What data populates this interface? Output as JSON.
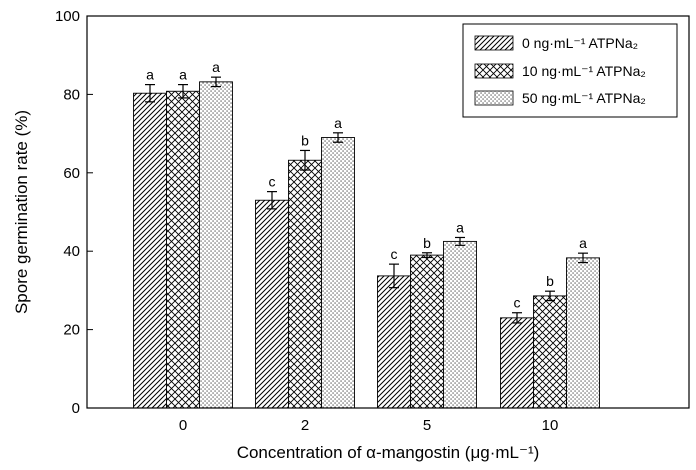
{
  "chart_data": {
    "type": "bar",
    "title": "",
    "xlabel": "Concentration of α-mangostin (μg·mL⁻¹)",
    "ylabel": "Spore germination rate (%)",
    "ylim": [
      0,
      100
    ],
    "yticks": [
      0,
      20,
      40,
      60,
      80,
      100
    ],
    "categories": [
      "0",
      "2",
      "5",
      "10"
    ],
    "legend_position": "top-right",
    "series": [
      {
        "name": "0 ng·mL⁻¹ ATPNa₂",
        "pattern": "diagonal-hatch",
        "values": [
          80.3,
          53.0,
          33.7,
          23.0
        ],
        "errors": [
          2.2,
          2.2,
          3.0,
          1.3
        ],
        "letters": [
          "a",
          "c",
          "c",
          "c"
        ]
      },
      {
        "name": "10 ng·mL⁻¹ ATPNa₂",
        "pattern": "crosshatch",
        "values": [
          80.8,
          63.2,
          39.0,
          28.6
        ],
        "errors": [
          1.7,
          2.5,
          0.6,
          1.2
        ],
        "letters": [
          "a",
          "b",
          "b",
          "b"
        ]
      },
      {
        "name": "50 ng·mL⁻¹ ATPNa₂",
        "pattern": "dots",
        "values": [
          83.2,
          69.0,
          42.5,
          38.3
        ],
        "errors": [
          1.2,
          1.2,
          1.0,
          1.2
        ],
        "letters": [
          "a",
          "a",
          "a",
          "a"
        ]
      }
    ]
  }
}
